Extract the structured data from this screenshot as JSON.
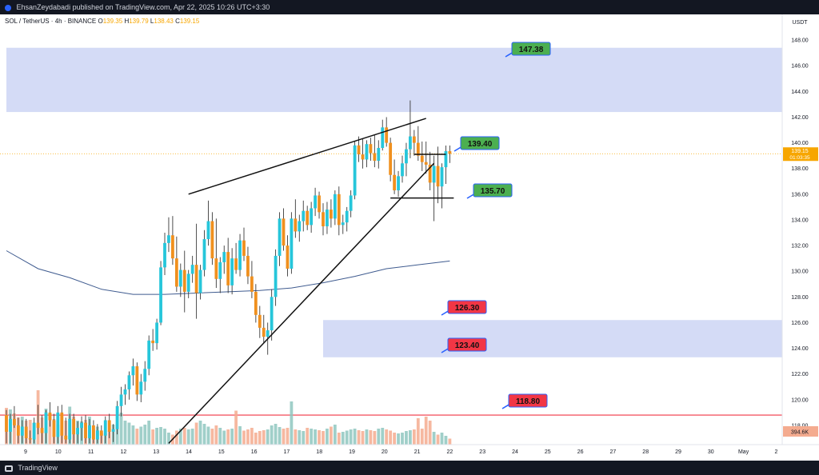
{
  "header": {
    "published_line": "EhsanZeydabadi published on TradingView.com, Apr 22, 2025 10:26 UTC+3:30"
  },
  "legend": {
    "symbol": "SOL / TetherUS · 4h · BINANCE",
    "open_label": "O",
    "open": "139.35",
    "high_label": "H",
    "high": "139.79",
    "low_label": "L",
    "low": "138.43",
    "close_label": "C",
    "close": "139.15"
  },
  "footer": {
    "brand": "TradingView"
  },
  "chart_data": {
    "type": "candlestick",
    "currency": "USDT",
    "ylim": [
      116.5,
      150
    ],
    "grid": false,
    "x_tick_labels": [
      "9",
      "10",
      "11",
      "12",
      "13",
      "14",
      "15",
      "16",
      "17",
      "18",
      "19",
      "20",
      "21",
      "22",
      "23",
      "24",
      "25",
      "26",
      "27",
      "28",
      "29",
      "30",
      "May",
      "2"
    ],
    "y_tick_labels": [
      "118.00",
      "120.00",
      "122.00",
      "124.00",
      "126.00",
      "128.00",
      "130.00",
      "132.00",
      "134.00",
      "136.00",
      "138.00",
      "140.00",
      "142.00",
      "144.00",
      "146.00",
      "148.00"
    ],
    "last_price_label": "139.15",
    "countdown_label": "01:03:35",
    "volume_label": "394.6K",
    "annotations": [
      {
        "label": "147.38",
        "price": 147.38,
        "color": "#4caf50"
      },
      {
        "label": "139.40",
        "price": 139.4,
        "color": "#4caf50"
      },
      {
        "label": "135.70",
        "price": 135.7,
        "color": "#4caf50"
      },
      {
        "label": "126.30",
        "price": 126.3,
        "color": "#f23645"
      },
      {
        "label": "123.40",
        "price": 123.4,
        "color": "#f23645"
      },
      {
        "label": "118.80",
        "price": 118.8,
        "color": "#f23645"
      }
    ],
    "zones": [
      {
        "from": 142.4,
        "to": 147.4,
        "start_index": 0,
        "color": "#c5cff3"
      },
      {
        "from": 123.3,
        "to": 126.2,
        "start_index": 80,
        "color": "#c5cff3"
      }
    ],
    "horizontal_line": {
      "price": 118.8,
      "color": "#f23645"
    },
    "candles": [
      [
        0,
        118.8,
        119.2,
        116.6,
        117.5
      ],
      [
        1,
        117.5,
        118.9,
        116.6,
        118.5
      ],
      [
        2,
        118.5,
        119.5,
        117.8,
        118.0
      ],
      [
        3,
        118.0,
        118.6,
        116.6,
        117.2
      ],
      [
        4,
        117.2,
        118.4,
        116.6,
        117.9
      ],
      [
        5,
        117.9,
        118.5,
        116.6,
        117.0
      ],
      [
        6,
        117.0,
        117.6,
        116.6,
        116.9
      ],
      [
        7,
        116.9,
        118.6,
        116.6,
        118.2
      ],
      [
        8,
        118.2,
        119.6,
        117.3,
        117.8
      ],
      [
        9,
        117.8,
        118.8,
        116.6,
        117.4
      ],
      [
        10,
        117.4,
        119.2,
        116.6,
        119.0
      ],
      [
        11,
        119.0,
        119.8,
        117.9,
        118.4
      ],
      [
        12,
        118.4,
        118.9,
        116.6,
        117.1
      ],
      [
        13,
        117.1,
        119.5,
        116.6,
        119.0
      ],
      [
        14,
        119.0,
        119.6,
        116.6,
        117.2
      ],
      [
        15,
        117.2,
        118.6,
        116.6,
        116.9
      ],
      [
        16,
        116.9,
        118.9,
        116.6,
        118.5
      ],
      [
        17,
        118.5,
        118.9,
        116.6,
        117.3
      ],
      [
        18,
        117.3,
        118.3,
        116.6,
        117.8
      ],
      [
        19,
        117.8,
        118.7,
        116.8,
        118.2
      ],
      [
        20,
        118.2,
        118.8,
        116.6,
        117.0
      ],
      [
        21,
        117.0,
        118.5,
        116.6,
        118.0
      ],
      [
        22,
        118.0,
        118.4,
        116.6,
        116.9
      ],
      [
        23,
        116.9,
        118.1,
        116.6,
        117.6
      ],
      [
        24,
        117.6,
        118.0,
        116.6,
        117.2
      ],
      [
        25,
        117.2,
        118.7,
        116.6,
        118.4
      ],
      [
        26,
        118.4,
        118.9,
        117.0,
        117.5
      ],
      [
        27,
        117.5,
        118.1,
        116.7,
        117.7
      ],
      [
        28,
        117.7,
        119.9,
        117.3,
        119.5
      ],
      [
        29,
        119.5,
        121.0,
        118.7,
        120.4
      ],
      [
        30,
        120.4,
        121.2,
        119.6,
        120.8
      ],
      [
        31,
        120.8,
        122.2,
        120.0,
        121.9
      ],
      [
        32,
        121.9,
        123.2,
        121.1,
        122.6
      ],
      [
        33,
        122.6,
        122.9,
        119.9,
        120.4
      ],
      [
        34,
        120.4,
        122.0,
        119.8,
        121.4
      ],
      [
        35,
        121.4,
        123.0,
        120.7,
        122.4
      ],
      [
        36,
        122.4,
        125.0,
        121.9,
        124.6
      ],
      [
        37,
        124.6,
        125.5,
        123.8,
        124.4
      ],
      [
        38,
        124.4,
        126.3,
        123.9,
        126.0
      ],
      [
        39,
        126.0,
        130.8,
        125.8,
        130.3
      ],
      [
        40,
        130.3,
        133.0,
        129.7,
        132.2
      ],
      [
        41,
        132.2,
        134.2,
        131.5,
        132.8
      ],
      [
        42,
        132.8,
        134.3,
        130.5,
        131.0
      ],
      [
        43,
        131.0,
        132.7,
        128.4,
        128.8
      ],
      [
        44,
        128.8,
        130.6,
        128.0,
        130.1
      ],
      [
        45,
        130.1,
        131.6,
        126.8,
        128.4
      ],
      [
        46,
        128.4,
        130.1,
        127.9,
        129.8
      ],
      [
        47,
        129.8,
        131.2,
        129.1,
        130.5
      ],
      [
        48,
        130.5,
        133.7,
        126.3,
        128.3
      ],
      [
        49,
        128.3,
        130.5,
        127.8,
        130.1
      ],
      [
        50,
        130.1,
        133.2,
        129.6,
        132.5
      ],
      [
        51,
        132.5,
        135.5,
        132.0,
        133.9
      ],
      [
        52,
        133.9,
        134.6,
        130.5,
        131.0
      ],
      [
        53,
        131.0,
        134.1,
        128.7,
        129.4
      ],
      [
        54,
        129.4,
        131.1,
        128.3,
        130.7
      ],
      [
        55,
        130.7,
        132.0,
        129.8,
        131.5
      ],
      [
        56,
        131.5,
        132.6,
        128.3,
        128.9
      ],
      [
        57,
        128.9,
        131.8,
        128.2,
        131.0
      ],
      [
        58,
        131.0,
        132.2,
        129.8,
        130.1
      ],
      [
        59,
        130.1,
        132.9,
        129.6,
        132.4
      ],
      [
        60,
        132.4,
        133.4,
        130.8,
        131.2
      ],
      [
        61,
        131.2,
        131.9,
        129.0,
        129.6
      ],
      [
        62,
        129.6,
        130.8,
        127.9,
        128.4
      ],
      [
        63,
        128.4,
        129.0,
        126.0,
        126.6
      ],
      [
        64,
        126.6,
        127.3,
        124.8,
        125.6
      ],
      [
        65,
        125.6,
        126.6,
        124.4,
        124.9
      ],
      [
        66,
        124.9,
        126.0,
        123.5,
        125.4
      ],
      [
        67,
        125.4,
        128.6,
        124.6,
        128.0
      ],
      [
        68,
        128.0,
        131.7,
        127.3,
        131.2
      ],
      [
        69,
        131.2,
        134.6,
        130.4,
        134.1
      ],
      [
        70,
        134.1,
        134.9,
        131.6,
        132.0
      ],
      [
        71,
        132.0,
        132.8,
        129.6,
        130.2
      ],
      [
        72,
        130.2,
        134.6,
        129.8,
        134.1
      ],
      [
        73,
        134.1,
        135.6,
        132.6,
        133.1
      ],
      [
        74,
        133.1,
        134.4,
        132.3,
        133.9
      ],
      [
        75,
        133.9,
        135.5,
        133.1,
        134.7
      ],
      [
        76,
        134.7,
        135.1,
        133.2,
        133.6
      ],
      [
        77,
        133.6,
        135.4,
        133.0,
        134.9
      ],
      [
        78,
        134.9,
        136.5,
        134.3,
        135.9
      ],
      [
        79,
        135.9,
        136.2,
        134.1,
        134.6
      ],
      [
        80,
        134.6,
        135.3,
        132.8,
        133.5
      ],
      [
        81,
        133.5,
        135.4,
        132.9,
        134.8
      ],
      [
        82,
        134.8,
        135.6,
        133.4,
        134.1
      ],
      [
        83,
        134.1,
        136.3,
        133.6,
        136.0
      ],
      [
        84,
        136.0,
        136.6,
        132.8,
        133.6
      ],
      [
        85,
        133.6,
        134.4,
        132.9,
        133.8
      ],
      [
        86,
        133.8,
        135.0,
        133.1,
        134.7
      ],
      [
        87,
        134.7,
        136.3,
        134.2,
        135.9
      ],
      [
        88,
        135.9,
        140.1,
        135.6,
        139.8
      ],
      [
        89,
        139.8,
        140.5,
        138.5,
        139.1
      ],
      [
        90,
        139.1,
        140.3,
        138.0,
        138.7
      ],
      [
        91,
        138.7,
        140.2,
        138.1,
        139.9
      ],
      [
        92,
        139.9,
        140.4,
        138.6,
        139.2
      ],
      [
        93,
        139.2,
        140.6,
        138.1,
        138.6
      ],
      [
        94,
        138.6,
        140.2,
        138.0,
        139.6
      ],
      [
        95,
        139.6,
        141.8,
        139.4,
        141.2
      ],
      [
        96,
        141.2,
        142.0,
        139.7,
        140.0
      ],
      [
        97,
        140.0,
        140.4,
        137.0,
        137.5
      ],
      [
        98,
        137.5,
        138.7,
        136.0,
        136.3
      ],
      [
        99,
        136.3,
        137.8,
        135.8,
        137.4
      ],
      [
        100,
        137.4,
        139.0,
        136.9,
        138.4
      ],
      [
        101,
        138.4,
        140.0,
        137.4,
        139.5
      ],
      [
        102,
        139.5,
        143.3,
        138.8,
        140.5
      ],
      [
        103,
        140.5,
        141.0,
        139.0,
        140.0
      ],
      [
        104,
        140.0,
        141.3,
        138.6,
        139.0
      ],
      [
        105,
        139.0,
        140.1,
        137.8,
        138.5
      ],
      [
        106,
        138.5,
        140.1,
        137.6,
        138.3
      ],
      [
        107,
        138.3,
        139.3,
        136.3,
        136.9
      ],
      [
        108,
        136.9,
        139.0,
        133.9,
        138.2
      ],
      [
        109,
        138.2,
        139.7,
        135.3,
        136.6
      ],
      [
        110,
        136.6,
        138.4,
        134.9,
        138.1
      ],
      [
        111,
        138.1,
        139.79,
        136.8,
        139.35
      ],
      [
        112,
        139.35,
        139.79,
        138.43,
        139.15
      ]
    ],
    "volume": [
      92,
      88,
      78,
      68,
      70,
      60,
      62,
      55,
      82,
      68,
      90,
      72,
      64,
      50,
      75,
      60,
      95,
      70,
      60,
      58,
      62,
      70,
      40,
      45,
      30,
      28,
      35,
      50,
      72,
      80,
      60,
      55,
      48,
      40,
      45,
      50,
      60,
      38,
      42,
      44,
      40,
      30,
      25,
      35,
      40,
      42,
      38,
      40,
      55,
      60,
      52,
      45,
      40,
      48,
      42,
      35,
      38,
      40,
      44,
      46,
      35,
      38,
      42,
      30,
      34,
      36,
      38,
      48,
      52,
      44,
      40,
      42,
      35,
      38,
      36,
      34,
      42,
      40,
      38,
      36,
      34,
      40,
      45,
      50,
      30,
      32,
      35,
      38,
      40,
      36,
      34,
      38,
      36,
      34,
      40,
      42,
      38,
      35,
      30,
      28,
      30,
      34,
      36,
      38,
      42,
      40,
      45,
      60,
      32,
      25,
      30,
      22,
      15
    ],
    "volume_spikes": [
      [
        8,
        136
      ],
      [
        58,
        85
      ],
      [
        72,
        108
      ],
      [
        106,
        70
      ],
      [
        104,
        66
      ]
    ],
    "moving_average": [
      [
        0,
        131.6
      ],
      [
        8,
        130.2
      ],
      [
        16,
        129.5
      ],
      [
        24,
        128.6
      ],
      [
        32,
        128.2
      ],
      [
        40,
        128.2
      ],
      [
        48,
        128.3
      ],
      [
        56,
        128.4
      ],
      [
        64,
        128.5
      ],
      [
        72,
        128.7
      ],
      [
        80,
        129.1
      ],
      [
        88,
        129.6
      ],
      [
        96,
        130.2
      ],
      [
        104,
        130.5
      ],
      [
        112,
        130.8
      ]
    ],
    "trendlines": [
      {
        "from": [
          46,
          136.0
        ],
        "to": [
          106,
          141.9
        ]
      },
      {
        "from": [
          41,
          116.6
        ],
        "to": [
          108,
          138.4
        ]
      },
      {
        "from": [
          103,
          139.1
        ],
        "to": [
          111,
          139.1
        ]
      },
      {
        "from": [
          97,
          135.7
        ],
        "to": [
          113,
          135.7
        ]
      }
    ]
  }
}
